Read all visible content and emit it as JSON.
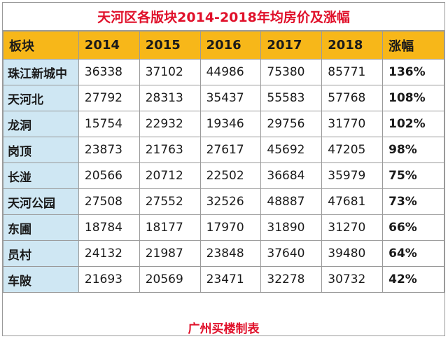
{
  "title": "天河区各版块2014-2018年均房价及涨幅",
  "headers": [
    "板块",
    "2014",
    "2015",
    "2016",
    "2017",
    "2018",
    "涨幅"
  ],
  "rows": [
    {
      "name": "珠江新城中",
      "values": [
        "36338",
        "37102",
        "44986",
        "75380",
        "85771"
      ],
      "growth": "136%"
    },
    {
      "name": "天河北",
      "values": [
        "27792",
        "28313",
        "35437",
        "55583",
        "57768"
      ],
      "growth": "108%"
    },
    {
      "name": "龙洞",
      "values": [
        "15754",
        "22932",
        "19346",
        "29756",
        "31770"
      ],
      "growth": "102%"
    },
    {
      "name": "岗顶",
      "values": [
        "23873",
        "21763",
        "27617",
        "45692",
        "47205"
      ],
      "growth": "98%"
    },
    {
      "name": "长湴",
      "values": [
        "20566",
        "20712",
        "22502",
        "36684",
        "35979"
      ],
      "growth": "75%"
    },
    {
      "name": "天河公园",
      "values": [
        "27508",
        "27552",
        "32526",
        "48887",
        "47681"
      ],
      "growth": "73%"
    },
    {
      "name": "东圃",
      "values": [
        "18784",
        "18177",
        "17970",
        "31890",
        "31270"
      ],
      "growth": "66%"
    },
    {
      "name": "员村",
      "values": [
        "24132",
        "21987",
        "23848",
        "37640",
        "39480"
      ],
      "growth": "64%"
    },
    {
      "name": "车陂",
      "values": [
        "21693",
        "20569",
        "23471",
        "32278",
        "30732"
      ],
      "growth": "42%"
    }
  ],
  "footer": "广州买楼制表",
  "colors": {
    "title_red": "#e0102a",
    "header_bg": "#f7b719",
    "name_bg": "#cfe7f3",
    "border": "#9a9a9a"
  }
}
